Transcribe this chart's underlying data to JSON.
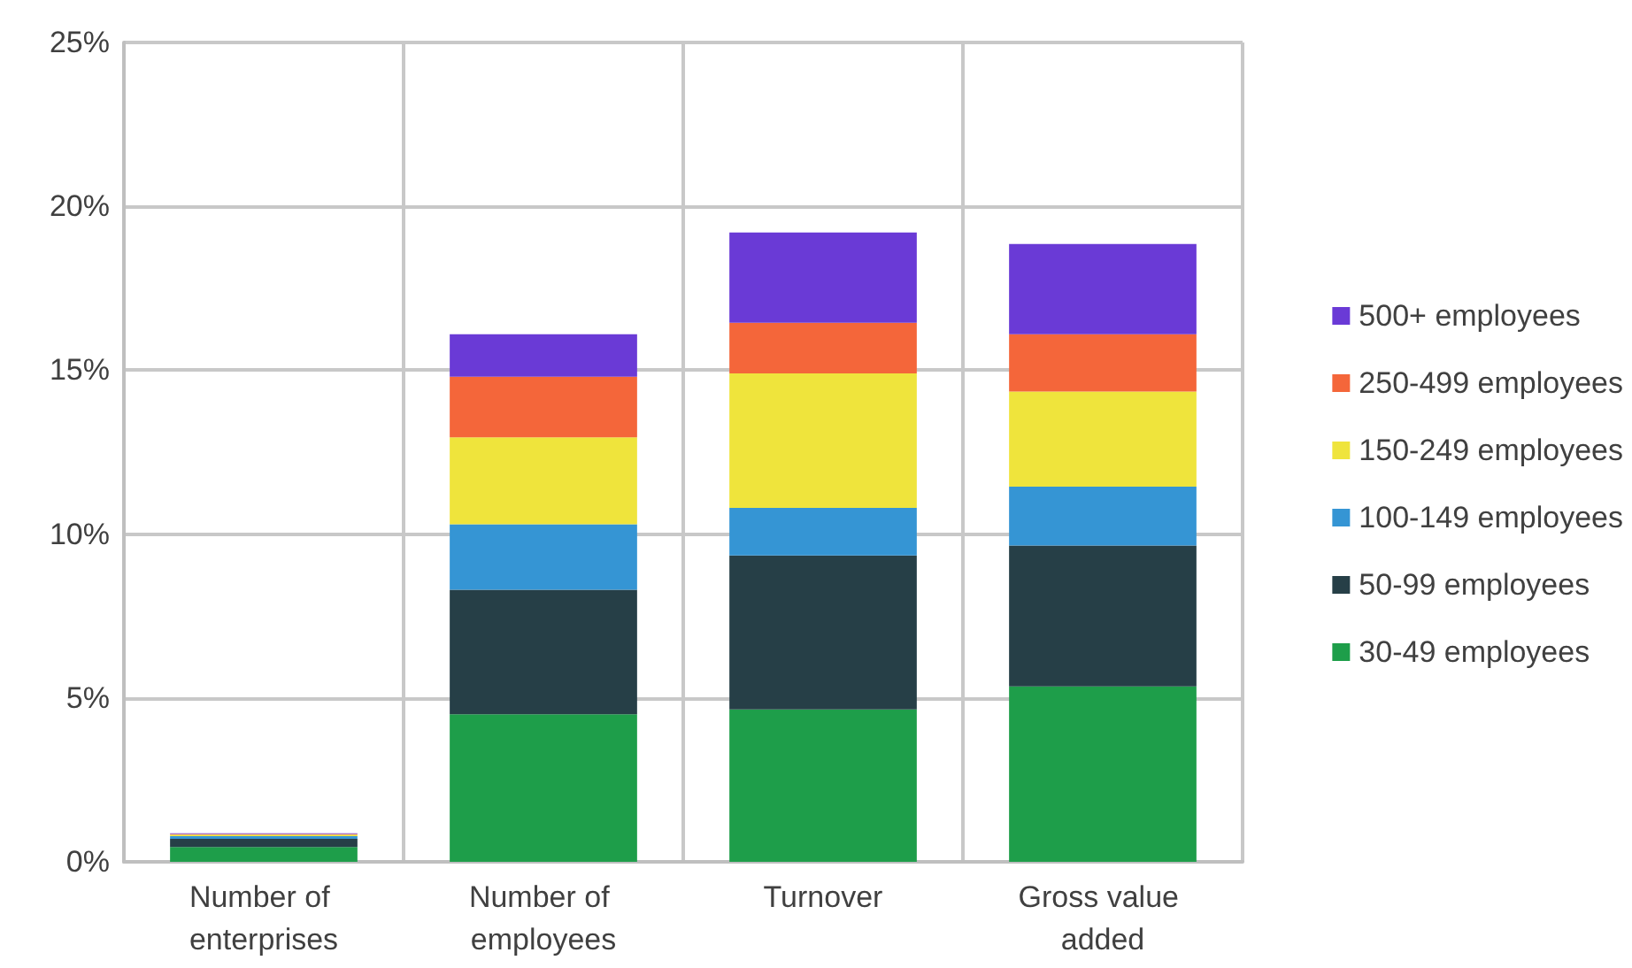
{
  "chart_data": {
    "type": "bar",
    "stacked": true,
    "categories": [
      "Number of enterprises",
      "Number of employees",
      "Turnover",
      "Gross value added"
    ],
    "series": [
      {
        "name": "30-49 employees",
        "color": "#1e9e4a",
        "values": [
          0.45,
          4.5,
          4.65,
          5.35
        ]
      },
      {
        "name": "50-99 employees",
        "color": "#263f47",
        "values": [
          0.25,
          3.8,
          4.7,
          4.3
        ]
      },
      {
        "name": "100-149 employees",
        "color": "#3595d4",
        "values": [
          0.08,
          2.0,
          1.45,
          1.8
        ]
      },
      {
        "name": "150-249 employees",
        "color": "#efe43c",
        "values": [
          0.05,
          2.65,
          4.1,
          2.9
        ]
      },
      {
        "name": "250-499 employees",
        "color": "#f4663a",
        "values": [
          0.02,
          1.85,
          1.55,
          1.75
        ]
      },
      {
        "name": "500+ employees",
        "color": "#6a3ad6",
        "values": [
          0.02,
          1.3,
          2.75,
          2.75
        ]
      }
    ],
    "ylim": [
      0,
      25
    ],
    "yticks": [
      {
        "value": 0,
        "label": "0%"
      },
      {
        "value": 5,
        "label": "5%"
      },
      {
        "value": 10,
        "label": "10%"
      },
      {
        "value": 15,
        "label": "15%"
      },
      {
        "value": 20,
        "label": "20%"
      },
      {
        "value": 25,
        "label": "25%"
      }
    ],
    "grid": true,
    "legend": "right"
  }
}
